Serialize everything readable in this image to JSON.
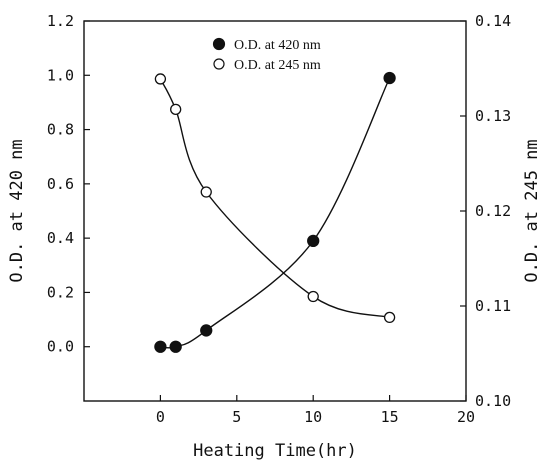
{
  "chart_data": {
    "type": "scatter",
    "xlabel": "Heating Time(hr)",
    "ylabel": "O.D. at 420 nm",
    "y2label": "O.D. at 245 nm",
    "xlim": [
      -5,
      20
    ],
    "ylim": [
      -0.2,
      1.2
    ],
    "y2lim": [
      0.1,
      0.14
    ],
    "xticks": [
      "0",
      "5",
      "10",
      "15",
      "20"
    ],
    "yticks": [
      "0.0",
      "0.2",
      "0.4",
      "0.6",
      "0.8",
      "1.0",
      "1.2"
    ],
    "y2ticks": [
      "0.10",
      "0.11",
      "0.12",
      "0.13",
      "0.14"
    ],
    "grid": false,
    "legend_position": "top-center",
    "series": [
      {
        "name": "O.D. at 420 nm",
        "axis": "left",
        "marker": "filled-circle",
        "x": [
          0,
          1,
          3,
          10,
          15
        ],
        "y": [
          0.0,
          0.0,
          0.06,
          0.39,
          0.99
        ]
      },
      {
        "name": "O.D. at 245 nm",
        "axis": "right",
        "marker": "open-circle",
        "x": [
          0,
          1,
          3,
          10,
          15
        ],
        "y": [
          0.1339,
          0.1307,
          0.122,
          0.111,
          0.1088
        ]
      }
    ]
  }
}
